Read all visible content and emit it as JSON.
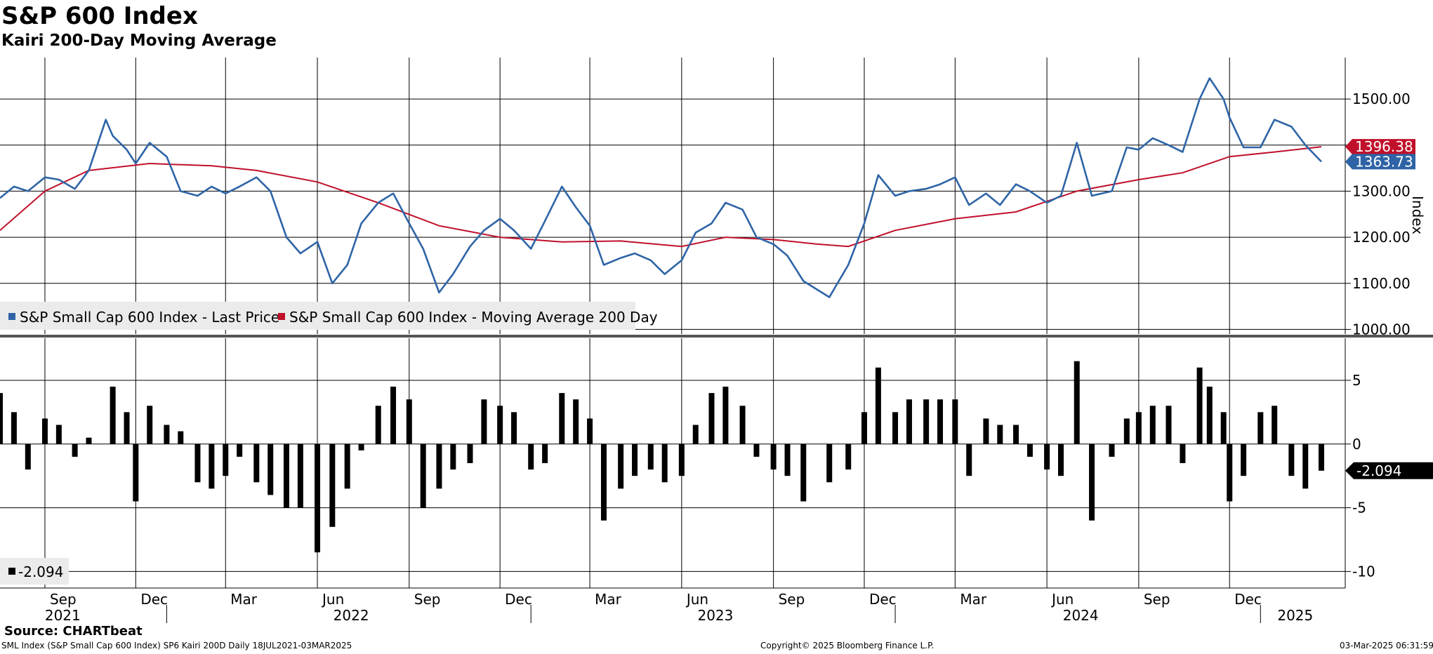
{
  "title": "S&P 600 Index",
  "subtitle": "Kairi 200-Day Moving Average",
  "source": "Source: CHARTbeat",
  "footer": {
    "left": "SML Index (S&P Small Cap 600 Index) SP6 Kairi 200D  Daily 18JUL2021-03MAR2025",
    "center": "Copyright© 2025 Bloomberg Finance L.P.",
    "right": "03-Mar-2025 06:31:59"
  },
  "colors": {
    "price": "#2e64a6",
    "ma": "#c0102a",
    "kairi": "#000000"
  },
  "chart_data": [
    {
      "type": "line",
      "panel": "upper",
      "ylabel": "Index",
      "ylim": [
        990,
        1590
      ],
      "yticks": [
        1000,
        1100,
        1200,
        1300,
        1400,
        1500
      ],
      "ytick_labels": [
        "1000.00",
        "1100.00",
        "1200.00",
        "1300.00",
        "",
        "1500.00"
      ],
      "legend_placement": "bottom-left",
      "grid": true,
      "last_value_labels": [
        {
          "series": "S&P Small Cap 600 Index - Moving Average 200 Day",
          "text": "1396.38"
        },
        {
          "series": "S&P Small Cap 600 Index - Last Price",
          "text": "1363.73"
        }
      ],
      "series": [
        {
          "name": "S&P Small Cap 600 Index - Last Price",
          "x": [
            "2021-07-18",
            "2021-08-01",
            "2021-08-15",
            "2021-09-01",
            "2021-09-15",
            "2021-10-01",
            "2021-10-15",
            "2021-11-01",
            "2021-11-08",
            "2021-11-22",
            "2021-12-01",
            "2021-12-15",
            "2022-01-01",
            "2022-01-15",
            "2022-02-01",
            "2022-02-15",
            "2022-03-01",
            "2022-03-15",
            "2022-04-01",
            "2022-04-15",
            "2022-05-01",
            "2022-05-15",
            "2022-06-01",
            "2022-06-16",
            "2022-07-01",
            "2022-07-15",
            "2022-08-01",
            "2022-08-16",
            "2022-09-01",
            "2022-09-15",
            "2022-10-01",
            "2022-10-15",
            "2022-11-01",
            "2022-11-15",
            "2022-12-01",
            "2022-12-15",
            "2023-01-01",
            "2023-01-15",
            "2023-02-01",
            "2023-02-15",
            "2023-03-01",
            "2023-03-15",
            "2023-04-01",
            "2023-04-15",
            "2023-05-01",
            "2023-05-15",
            "2023-06-01",
            "2023-06-15",
            "2023-07-01",
            "2023-07-15",
            "2023-08-01",
            "2023-08-15",
            "2023-09-01",
            "2023-09-15",
            "2023-10-01",
            "2023-10-27",
            "2023-11-15",
            "2023-12-01",
            "2023-12-15",
            "2024-01-01",
            "2024-01-15",
            "2024-02-01",
            "2024-02-15",
            "2024-03-01",
            "2024-03-15",
            "2024-04-01",
            "2024-04-15",
            "2024-05-01",
            "2024-05-15",
            "2024-06-01",
            "2024-06-15",
            "2024-07-01",
            "2024-07-16",
            "2024-08-05",
            "2024-08-20",
            "2024-09-01",
            "2024-09-15",
            "2024-10-01",
            "2024-10-15",
            "2024-11-01",
            "2024-11-11",
            "2024-11-25",
            "2024-12-01",
            "2024-12-15",
            "2025-01-01",
            "2025-01-15",
            "2025-02-01",
            "2025-02-15",
            "2025-03-03"
          ],
          "values": [
            1285,
            1310,
            1300,
            1330,
            1325,
            1305,
            1345,
            1455,
            1420,
            1390,
            1360,
            1405,
            1375,
            1300,
            1290,
            1310,
            1295,
            1310,
            1330,
            1300,
            1200,
            1165,
            1190,
            1100,
            1140,
            1230,
            1275,
            1295,
            1230,
            1175,
            1080,
            1120,
            1180,
            1215,
            1240,
            1215,
            1175,
            1235,
            1310,
            1265,
            1225,
            1140,
            1155,
            1165,
            1150,
            1120,
            1150,
            1210,
            1230,
            1275,
            1260,
            1200,
            1185,
            1160,
            1105,
            1070,
            1140,
            1230,
            1335,
            1290,
            1300,
            1305,
            1315,
            1330,
            1270,
            1295,
            1270,
            1315,
            1300,
            1275,
            1290,
            1405,
            1290,
            1300,
            1395,
            1390,
            1415,
            1400,
            1385,
            1500,
            1545,
            1500,
            1460,
            1395,
            1395,
            1455,
            1440,
            1400,
            1364
          ]
        },
        {
          "name": "S&P Small Cap 600 Index - Moving Average 200 Day",
          "x": [
            "2021-07-18",
            "2021-09-01",
            "2021-10-15",
            "2021-12-15",
            "2022-02-15",
            "2022-04-01",
            "2022-06-01",
            "2022-08-01",
            "2022-10-01",
            "2022-12-01",
            "2023-02-01",
            "2023-04-01",
            "2023-06-01",
            "2023-07-15",
            "2023-09-01",
            "2023-10-15",
            "2023-11-15",
            "2024-01-01",
            "2024-03-01",
            "2024-05-01",
            "2024-07-01",
            "2024-09-01",
            "2024-10-15",
            "2024-12-01",
            "2025-01-15",
            "2025-03-03"
          ],
          "values": [
            1215,
            1300,
            1345,
            1360,
            1355,
            1345,
            1320,
            1275,
            1225,
            1200,
            1190,
            1192,
            1180,
            1200,
            1195,
            1185,
            1180,
            1215,
            1240,
            1255,
            1300,
            1325,
            1340,
            1375,
            1385,
            1396.38
          ]
        }
      ]
    },
    {
      "type": "bar",
      "panel": "lower",
      "ylim": [
        -11.3,
        8.3
      ],
      "yticks": [
        -10,
        -5,
        0,
        5
      ],
      "ytick_labels": [
        "-10",
        "-5",
        "0",
        "5"
      ],
      "legend_placement": "bottom-left",
      "grid": true,
      "last_value_labels": [
        {
          "series": "Kairi",
          "text": "-2.094"
        }
      ],
      "series": [
        {
          "name": "-2.094",
          "x": [
            "2021-07-18",
            "2021-08-01",
            "2021-08-15",
            "2021-09-01",
            "2021-09-15",
            "2021-10-01",
            "2021-10-15",
            "2021-11-08",
            "2021-11-22",
            "2021-12-01",
            "2021-12-15",
            "2022-01-01",
            "2022-01-15",
            "2022-02-01",
            "2022-02-15",
            "2022-03-01",
            "2022-03-15",
            "2022-04-01",
            "2022-04-15",
            "2022-05-01",
            "2022-05-15",
            "2022-06-01",
            "2022-06-16",
            "2022-07-01",
            "2022-07-15",
            "2022-08-01",
            "2022-08-16",
            "2022-09-01",
            "2022-09-15",
            "2022-10-01",
            "2022-10-15",
            "2022-11-01",
            "2022-11-15",
            "2022-12-01",
            "2022-12-15",
            "2023-01-01",
            "2023-01-15",
            "2023-02-01",
            "2023-02-15",
            "2023-03-01",
            "2023-03-15",
            "2023-04-01",
            "2023-04-15",
            "2023-05-01",
            "2023-05-15",
            "2023-06-01",
            "2023-06-15",
            "2023-07-01",
            "2023-07-15",
            "2023-08-01",
            "2023-08-15",
            "2023-09-01",
            "2023-09-15",
            "2023-10-01",
            "2023-10-27",
            "2023-11-15",
            "2023-12-01",
            "2023-12-15",
            "2024-01-01",
            "2024-01-15",
            "2024-02-01",
            "2024-02-15",
            "2024-03-01",
            "2024-03-15",
            "2024-04-01",
            "2024-04-15",
            "2024-05-01",
            "2024-05-15",
            "2024-06-01",
            "2024-06-15",
            "2024-07-01",
            "2024-07-16",
            "2024-08-05",
            "2024-08-20",
            "2024-09-01",
            "2024-09-15",
            "2024-10-01",
            "2024-10-15",
            "2024-11-01",
            "2024-11-11",
            "2024-11-25",
            "2024-12-01",
            "2024-12-15",
            "2025-01-01",
            "2025-01-15",
            "2025-02-01",
            "2025-02-15",
            "2025-03-03"
          ],
          "values": [
            4,
            2.5,
            -2,
            2,
            1.5,
            -1,
            0.5,
            4.5,
            2.5,
            -4.5,
            3,
            1.5,
            1,
            -3,
            -3.5,
            -2.5,
            -1,
            -3,
            -4,
            -5,
            -5,
            -8.5,
            -6.5,
            -3.5,
            -0.5,
            3,
            4.5,
            3.5,
            -5,
            -3.5,
            -2,
            -1.5,
            3.5,
            3,
            2.5,
            -2,
            -1.5,
            4,
            3.5,
            2,
            -6,
            -3.5,
            -2.5,
            -2,
            -3,
            -2.5,
            1.5,
            4,
            4.5,
            3,
            -1,
            -2,
            -2.5,
            -4.5,
            -3,
            -2,
            2.5,
            6,
            2.5,
            3.5,
            3.5,
            3.5,
            3.5,
            -2.5,
            2,
            1.5,
            1.5,
            -1,
            -2,
            -2.5,
            6.5,
            -6,
            -1,
            2,
            2.5,
            3,
            3,
            -1.5,
            6,
            4.5,
            2.5,
            -4.5,
            -2.5,
            2.5,
            3,
            -2.5,
            -3.5,
            -2.094
          ]
        }
      ]
    }
  ],
  "x_axis": {
    "month_labels": [
      {
        "date": "2021-09-01",
        "label": "Sep"
      },
      {
        "date": "2021-12-01",
        "label": "Dec"
      },
      {
        "date": "2022-03-01",
        "label": "Mar"
      },
      {
        "date": "2022-06-01",
        "label": "Jun"
      },
      {
        "date": "2022-09-01",
        "label": "Sep"
      },
      {
        "date": "2022-12-01",
        "label": "Dec"
      },
      {
        "date": "2023-03-01",
        "label": "Mar"
      },
      {
        "date": "2023-06-01",
        "label": "Jun"
      },
      {
        "date": "2023-09-01",
        "label": "Sep"
      },
      {
        "date": "2023-12-01",
        "label": "Dec"
      },
      {
        "date": "2024-03-01",
        "label": "Mar"
      },
      {
        "date": "2024-06-01",
        "label": "Jun"
      },
      {
        "date": "2024-09-01",
        "label": "Sep"
      },
      {
        "date": "2024-12-01",
        "label": "Dec"
      }
    ],
    "year_labels": [
      {
        "date": "2021-09-15",
        "label": "2021"
      },
      {
        "date": "2022-07-01",
        "label": "2022"
      },
      {
        "date": "2023-07-01",
        "label": "2023"
      },
      {
        "date": "2024-07-01",
        "label": "2024"
      },
      {
        "date": "2025-02-01",
        "label": "2025"
      }
    ]
  }
}
